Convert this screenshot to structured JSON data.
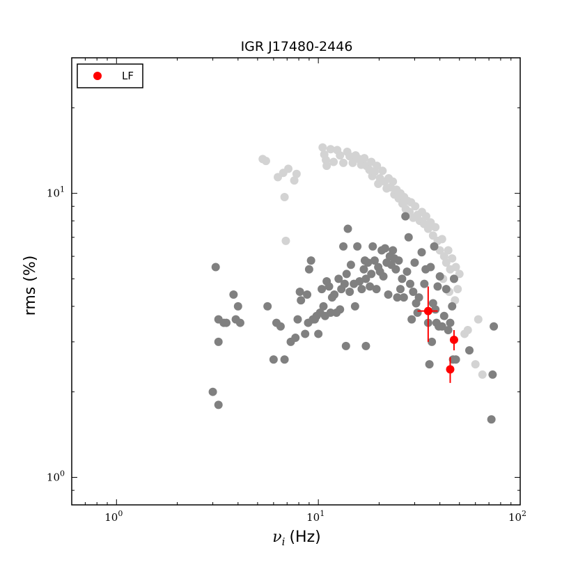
{
  "chart_data": {
    "type": "scatter",
    "title": "IGR J17480-2446",
    "xlabel": "ν",
    "xlabel_sub": "i",
    "xlabel_unit": "(Hz)",
    "ylabel": "rms (%)",
    "x_scale": "log",
    "y_scale": "log",
    "xlim": [
      0.6,
      100
    ],
    "ylim": [
      0.8,
      30
    ],
    "x_ticks": [
      {
        "value": 1,
        "base": "10",
        "exp": "0"
      },
      {
        "value": 10,
        "base": "10",
        "exp": "1"
      },
      {
        "value": 100,
        "base": "10",
        "exp": "2"
      }
    ],
    "y_ticks": [
      {
        "value": 1,
        "base": "10",
        "exp": "0"
      },
      {
        "value": 10,
        "base": "10",
        "exp": "1"
      }
    ],
    "grid": false,
    "legend": {
      "position": "top-left",
      "entries": [
        {
          "label": "LF",
          "color": "#ff0000"
        }
      ]
    },
    "colors": {
      "light_gray": "#d3d3d3",
      "dark_gray": "#808080",
      "lf": "#ff0000"
    },
    "series": [
      {
        "color": "#d3d3d3",
        "points": [
          [
            5.3,
            13.2
          ],
          [
            5.5,
            13.0
          ],
          [
            6.3,
            11.4
          ],
          [
            6.7,
            11.8
          ],
          [
            7.1,
            12.2
          ],
          [
            7.6,
            11.1
          ],
          [
            7.8,
            11.7
          ],
          [
            6.8,
            9.7
          ],
          [
            6.9,
            6.8
          ],
          [
            10.5,
            14.5
          ],
          [
            10.7,
            13.7
          ],
          [
            10.9,
            13.1
          ],
          [
            11.0,
            12.5
          ],
          [
            11.5,
            14.3
          ],
          [
            11.9,
            12.9
          ],
          [
            12.4,
            14.2
          ],
          [
            12.8,
            13.6
          ],
          [
            13.3,
            12.8
          ],
          [
            13.9,
            14.0
          ],
          [
            14.3,
            13.5
          ],
          [
            14.8,
            12.8
          ],
          [
            15.3,
            13.6
          ],
          [
            15.9,
            13.2
          ],
          [
            16.3,
            12.6
          ],
          [
            16.9,
            13.3
          ],
          [
            17.3,
            12.5
          ],
          [
            17.9,
            12.1
          ],
          [
            18.3,
            12.9
          ],
          [
            18.5,
            11.5
          ],
          [
            19.0,
            11.9
          ],
          [
            19.5,
            12.5
          ],
          [
            19.8,
            10.8
          ],
          [
            20.2,
            11.3
          ],
          [
            20.8,
            12.0
          ],
          [
            21.3,
            11.0
          ],
          [
            21.8,
            10.4
          ],
          [
            22.3,
            11.3
          ],
          [
            22.8,
            10.5
          ],
          [
            23.4,
            11.0
          ],
          [
            23.8,
            9.9
          ],
          [
            24.4,
            10.3
          ],
          [
            25.0,
            9.6
          ],
          [
            25.5,
            10.0
          ],
          [
            26.1,
            9.2
          ],
          [
            26.6,
            9.7
          ],
          [
            27.1,
            8.8
          ],
          [
            27.7,
            9.4
          ],
          [
            28.3,
            8.6
          ],
          [
            28.8,
            9.3
          ],
          [
            29.5,
            8.2
          ],
          [
            30.2,
            9.0
          ],
          [
            31.0,
            8.4
          ],
          [
            31.8,
            8.0
          ],
          [
            32.6,
            8.6
          ],
          [
            33.4,
            7.8
          ],
          [
            34.2,
            8.3
          ],
          [
            35.0,
            7.5
          ],
          [
            36.0,
            7.9
          ],
          [
            37.0,
            7.1
          ],
          [
            38.0,
            7.6
          ],
          [
            39.0,
            6.8
          ],
          [
            40.0,
            6.3
          ],
          [
            41.0,
            6.9
          ],
          [
            42.0,
            6.0
          ],
          [
            43.0,
            5.7
          ],
          [
            44.0,
            6.3
          ],
          [
            45.0,
            5.4
          ],
          [
            46.0,
            5.9
          ],
          [
            47.0,
            5.0
          ],
          [
            48.0,
            5.5
          ],
          [
            49.0,
            4.6
          ],
          [
            50.0,
            5.2
          ],
          [
            41.5,
            5.0
          ],
          [
            44.5,
            4.5
          ],
          [
            47.5,
            4.2
          ],
          [
            53.0,
            3.2
          ],
          [
            55.0,
            3.3
          ],
          [
            60.0,
            2.5
          ],
          [
            62.0,
            3.6
          ],
          [
            65.0,
            2.3
          ]
        ]
      },
      {
        "color": "#808080",
        "points": [
          [
            3.0,
            2.0
          ],
          [
            3.2,
            1.8
          ],
          [
            3.1,
            5.5
          ],
          [
            3.2,
            3.0
          ],
          [
            3.2,
            3.6
          ],
          [
            3.4,
            3.5
          ],
          [
            3.5,
            3.5
          ],
          [
            3.8,
            4.4
          ],
          [
            3.9,
            3.6
          ],
          [
            4.0,
            4.0
          ],
          [
            4.1,
            3.5
          ],
          [
            5.6,
            4.0
          ],
          [
            6.0,
            2.6
          ],
          [
            6.2,
            3.5
          ],
          [
            6.5,
            3.4
          ],
          [
            6.8,
            2.6
          ],
          [
            7.3,
            3.0
          ],
          [
            7.7,
            3.1
          ],
          [
            7.9,
            3.6
          ],
          [
            8.1,
            4.5
          ],
          [
            8.2,
            4.2
          ],
          [
            8.6,
            3.2
          ],
          [
            8.9,
            3.5
          ],
          [
            8.8,
            4.4
          ],
          [
            9.0,
            5.4
          ],
          [
            9.2,
            5.8
          ],
          [
            9.4,
            3.6
          ],
          [
            9.6,
            3.6
          ],
          [
            9.8,
            3.7
          ],
          [
            10.0,
            3.2
          ],
          [
            10.2,
            3.8
          ],
          [
            10.4,
            4.6
          ],
          [
            10.6,
            4.0
          ],
          [
            10.8,
            3.7
          ],
          [
            11.0,
            4.9
          ],
          [
            11.3,
            4.7
          ],
          [
            11.5,
            3.8
          ],
          [
            11.7,
            4.3
          ],
          [
            12.0,
            4.4
          ],
          [
            12.3,
            3.8
          ],
          [
            12.6,
            5.0
          ],
          [
            12.8,
            3.9
          ],
          [
            13.0,
            4.6
          ],
          [
            13.3,
            6.5
          ],
          [
            13.5,
            4.8
          ],
          [
            13.8,
            5.2
          ],
          [
            14.0,
            7.5
          ],
          [
            14.3,
            4.5
          ],
          [
            14.5,
            5.6
          ],
          [
            13.7,
            2.9
          ],
          [
            15.0,
            4.8
          ],
          [
            15.2,
            4.0
          ],
          [
            15.6,
            6.5
          ],
          [
            16.0,
            4.9
          ],
          [
            16.4,
            4.6
          ],
          [
            16.8,
            5.4
          ],
          [
            17.0,
            5.8
          ],
          [
            17.2,
            5.0
          ],
          [
            17.2,
            2.9
          ],
          [
            17.6,
            5.7
          ],
          [
            18.0,
            4.7
          ],
          [
            18.3,
            5.2
          ],
          [
            18.6,
            6.5
          ],
          [
            19.0,
            5.8
          ],
          [
            19.4,
            4.6
          ],
          [
            19.8,
            5.5
          ],
          [
            20.2,
            5.3
          ],
          [
            20.6,
            6.3
          ],
          [
            21.0,
            5.1
          ],
          [
            21.4,
            6.4
          ],
          [
            21.8,
            5.7
          ],
          [
            22.2,
            4.4
          ],
          [
            22.6,
            6.0
          ],
          [
            23.0,
            5.6
          ],
          [
            23.4,
            6.3
          ],
          [
            23.8,
            5.9
          ],
          [
            24.2,
            5.4
          ],
          [
            24.6,
            4.3
          ],
          [
            25.0,
            5.8
          ],
          [
            25.5,
            4.6
          ],
          [
            26.0,
            5.0
          ],
          [
            26.5,
            4.3
          ],
          [
            27.0,
            8.3
          ],
          [
            27.5,
            5.3
          ],
          [
            28.0,
            7.0
          ],
          [
            28.5,
            4.8
          ],
          [
            29.0,
            3.6
          ],
          [
            29.5,
            4.5
          ],
          [
            30.0,
            5.7
          ],
          [
            30.5,
            4.1
          ],
          [
            31.0,
            3.8
          ],
          [
            31.5,
            4.3
          ],
          [
            32.5,
            6.2
          ],
          [
            33.5,
            4.8
          ],
          [
            34.0,
            5.4
          ],
          [
            35.0,
            3.5
          ],
          [
            35.5,
            2.5
          ],
          [
            36.0,
            5.5
          ],
          [
            36.5,
            3.0
          ],
          [
            37.0,
            4.1
          ],
          [
            37.5,
            6.5
          ],
          [
            38.0,
            3.9
          ],
          [
            38.5,
            3.5
          ],
          [
            39.0,
            4.7
          ],
          [
            39.5,
            3.4
          ],
          [
            40.0,
            5.1
          ],
          [
            41.0,
            3.4
          ],
          [
            42.0,
            3.7
          ],
          [
            43.0,
            4.6
          ],
          [
            44.0,
            3.3
          ],
          [
            45.0,
            3.5
          ],
          [
            46.0,
            4.0
          ],
          [
            46.5,
            2.6
          ],
          [
            47.0,
            5.0
          ],
          [
            48.0,
            2.6
          ],
          [
            56.0,
            2.8
          ],
          [
            72.0,
            1.6
          ],
          [
            73.0,
            2.3
          ],
          [
            74.0,
            3.4
          ]
        ]
      },
      {
        "name": "LF",
        "color": "#ff0000",
        "points": [
          [
            35.0,
            3.85,
            31.0,
            39.0,
            3.0,
            4.7
          ],
          [
            47.0,
            3.05,
            45.5,
            48.5,
            2.8,
            3.3
          ],
          [
            45.0,
            2.4,
            44.0,
            46.0,
            2.15,
            2.65
          ]
        ]
      }
    ]
  }
}
